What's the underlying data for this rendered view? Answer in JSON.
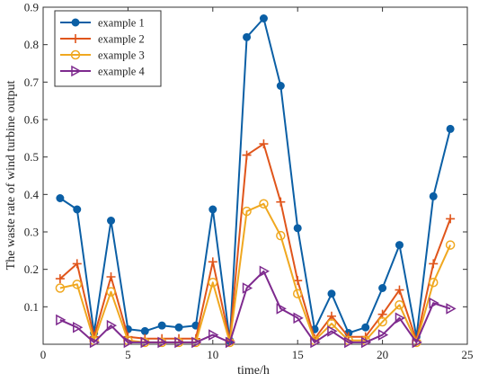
{
  "chart_data": {
    "type": "line",
    "xlabel": "time/h",
    "ylabel": "The waste rate of wind turbine output",
    "xlim": [
      0,
      25
    ],
    "ylim": [
      0,
      0.9
    ],
    "xticks": [
      0,
      5,
      10,
      15,
      20,
      25
    ],
    "yticks": [
      0.1,
      0.2,
      0.3,
      0.4,
      0.5,
      0.6,
      0.7,
      0.8,
      0.9
    ],
    "grid": false,
    "legend_position": "top-left",
    "x": [
      1,
      2,
      3,
      4,
      5,
      6,
      7,
      8,
      9,
      10,
      11,
      12,
      13,
      14,
      15,
      16,
      17,
      18,
      19,
      20,
      21,
      22,
      23,
      24
    ],
    "series": [
      {
        "name": "example 1",
        "color": "#0b5fa5",
        "marker": "filled-circle",
        "values": [
          0.39,
          0.36,
          0.03,
          0.33,
          0.04,
          0.035,
          0.05,
          0.045,
          0.05,
          0.36,
          0.01,
          0.82,
          0.87,
          0.69,
          0.31,
          0.04,
          0.135,
          0.03,
          0.045,
          0.15,
          0.265,
          0.02,
          0.395,
          0.575
        ]
      },
      {
        "name": "example 2",
        "color": "#e0551b",
        "marker": "plus",
        "values": [
          0.175,
          0.215,
          0.02,
          0.18,
          0.02,
          0.015,
          0.015,
          0.015,
          0.015,
          0.22,
          0.01,
          0.505,
          0.535,
          0.38,
          0.17,
          0.015,
          0.075,
          0.02,
          0.02,
          0.08,
          0.145,
          0.01,
          0.215,
          0.335
        ]
      },
      {
        "name": "example 3",
        "color": "#f0a820",
        "marker": "open-circle",
        "values": [
          0.15,
          0.16,
          0.01,
          0.14,
          0.01,
          0.005,
          0.005,
          0.005,
          0.005,
          0.165,
          0.005,
          0.355,
          0.375,
          0.29,
          0.135,
          0.01,
          0.055,
          0.01,
          0.01,
          0.06,
          0.105,
          0.005,
          0.165,
          0.265
        ]
      },
      {
        "name": "example 4",
        "color": "#7e2a8e",
        "marker": "open-triangle-right",
        "values": [
          0.065,
          0.045,
          0.005,
          0.05,
          0.005,
          0.005,
          0.005,
          0.005,
          0.005,
          0.025,
          0.005,
          0.15,
          0.195,
          0.095,
          0.07,
          0.005,
          0.035,
          0.005,
          0.005,
          0.025,
          0.07,
          0.005,
          0.11,
          0.095
        ]
      }
    ]
  }
}
